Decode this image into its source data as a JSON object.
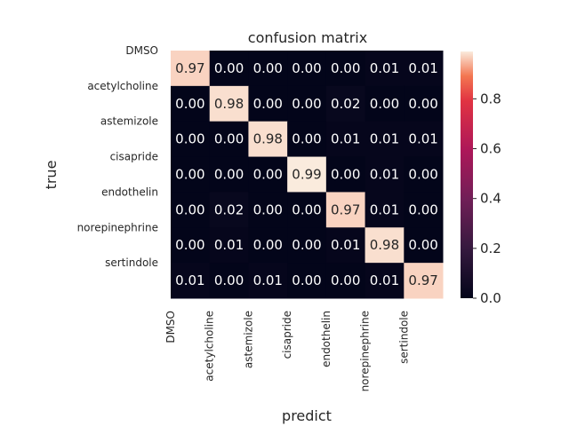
{
  "chart_data": {
    "type": "heatmap",
    "title": "confusion matrix",
    "xlabel": "predict",
    "ylabel": "true",
    "row_labels": [
      "DMSO",
      "acetylcholine",
      "astemizole",
      "cisapride",
      "endothelin",
      "norepinephrine",
      "sertindole"
    ],
    "col_labels": [
      "DMSO",
      "acetylcholine",
      "astemizole",
      "cisapride",
      "endothelin",
      "norepinephrine",
      "sertindole"
    ],
    "values": [
      [
        0.97,
        0.0,
        0.0,
        0.0,
        0.0,
        0.01,
        0.01
      ],
      [
        0.0,
        0.98,
        0.0,
        0.0,
        0.02,
        0.0,
        0.0
      ],
      [
        0.0,
        0.0,
        0.98,
        0.0,
        0.01,
        0.01,
        0.01
      ],
      [
        0.0,
        0.0,
        0.0,
        0.99,
        0.0,
        0.01,
        0.0
      ],
      [
        0.0,
        0.02,
        0.0,
        0.0,
        0.97,
        0.01,
        0.0
      ],
      [
        0.0,
        0.01,
        0.0,
        0.0,
        0.01,
        0.98,
        0.0
      ],
      [
        0.01,
        0.0,
        0.01,
        0.0,
        0.0,
        0.01,
        0.97
      ]
    ],
    "colorbar": {
      "min": 0.0,
      "max": 0.99,
      "ticks": [
        "0.0",
        "0.2",
        "0.4",
        "0.6",
        "0.8"
      ],
      "tick_values": [
        0.0,
        0.2,
        0.4,
        0.6,
        0.8
      ]
    },
    "colormap": "rocket"
  }
}
